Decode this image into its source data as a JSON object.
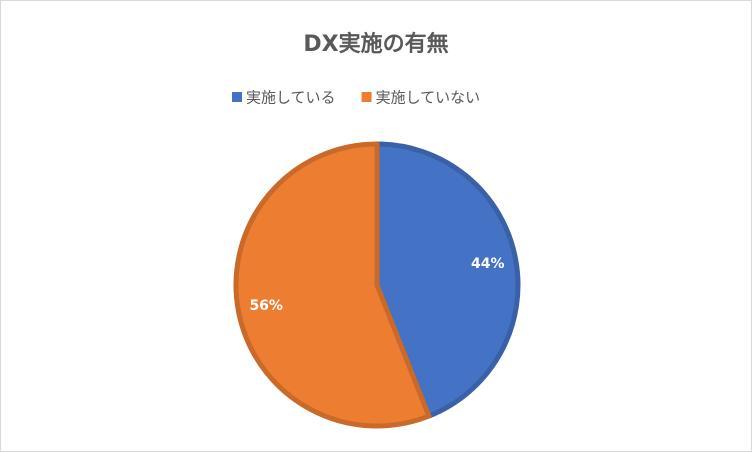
{
  "chart_data": {
    "type": "pie",
    "title": "DX実施の有無",
    "categories": [
      "実施している",
      "実施していない"
    ],
    "values": [
      44,
      56
    ],
    "value_labels": [
      "44%",
      "56%"
    ],
    "colors": [
      "#4472c4",
      "#ed7d31"
    ],
    "legend": "top"
  }
}
